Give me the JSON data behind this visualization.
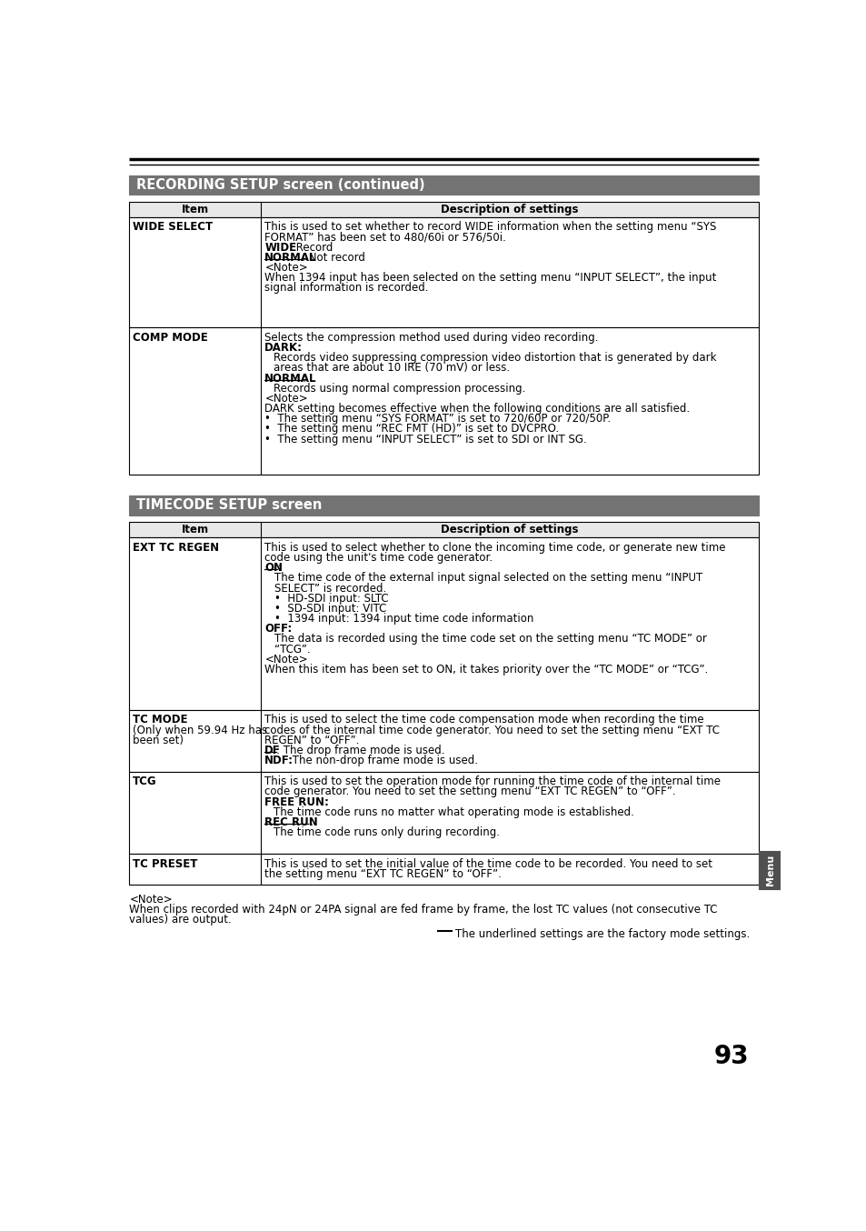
{
  "page_number": "93",
  "bg_color": "#ffffff",
  "header_bg": "#737373",
  "header_text_color": "#ffffff",
  "section1_title": "RECORDING SETUP screen (continued)",
  "section2_title": "TIMECODE SETUP screen",
  "side_tab_text": "Menu",
  "side_tab_bg": "#505050"
}
